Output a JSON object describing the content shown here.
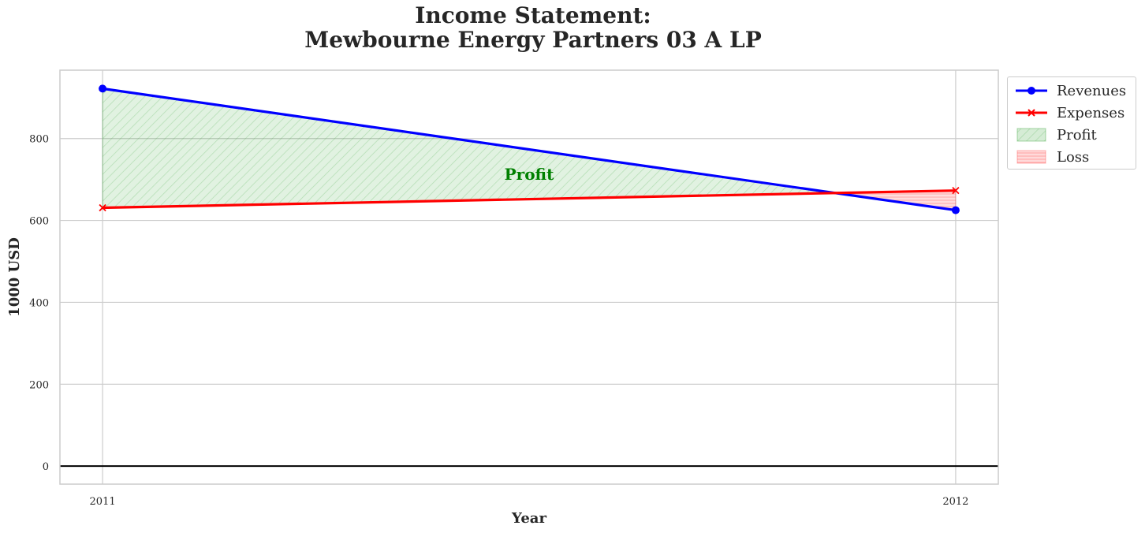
{
  "title_lines": [
    "Income Statement:",
    "Mewbourne Energy Partners 03 A LP"
  ],
  "colors": {
    "revenues": "#0000ff",
    "expenses": "#ff0000",
    "profit_fill": "#2ca02c",
    "loss_fill": "#ff6b6b",
    "profit_text": "#008000",
    "grid": "#cccccc",
    "zero_line": "#000000"
  },
  "chart_data": {
    "type": "line",
    "title": "Income Statement:\nMewbourne Energy Partners 03 A LP",
    "xlabel": "Year",
    "ylabel": "1000 USD",
    "x": [
      "2011",
      "2012"
    ],
    "series": [
      {
        "name": "Revenues",
        "values": [
          922,
          625
        ],
        "marker": "circle"
      },
      {
        "name": "Expenses",
        "values": [
          631,
          673
        ],
        "marker": "x"
      }
    ],
    "fills": [
      {
        "name": "Profit",
        "where": "Revenues > Expenses",
        "hatch": "diagonal"
      },
      {
        "name": "Loss",
        "where": "Expenses > Revenues",
        "hatch": "horizontal"
      }
    ],
    "annotation": {
      "text": "Profit",
      "x_fraction": 0.5,
      "y": 713
    },
    "ylim": [
      -44,
      967
    ],
    "yticks": [
      0,
      200,
      400,
      600,
      800
    ],
    "xlim_pad": 0.05,
    "grid": true,
    "zero_line": true,
    "legend": {
      "placement": "outside-top-right",
      "entries": [
        {
          "label": "Revenues",
          "kind": "line-circle"
        },
        {
          "label": "Expenses",
          "kind": "line-x"
        },
        {
          "label": "Profit",
          "kind": "patch-profit"
        },
        {
          "label": "Loss",
          "kind": "patch-loss"
        }
      ]
    }
  }
}
